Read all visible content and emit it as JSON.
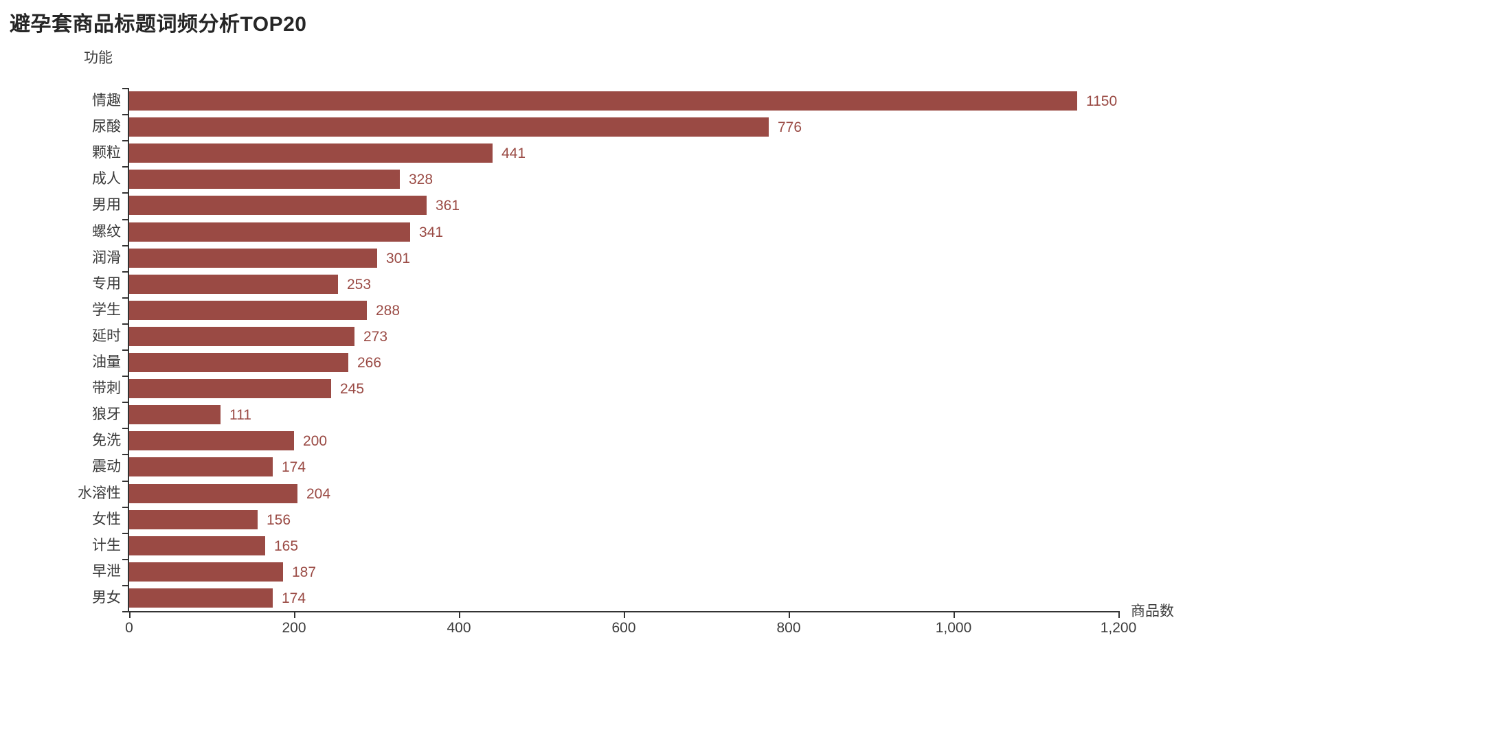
{
  "page": {
    "background": "#ffffff"
  },
  "header": {
    "title": "避孕套商品标题词频分析TOP20"
  },
  "chart_data": {
    "type": "bar",
    "orientation": "horizontal",
    "title": "避孕套商品标题词频分析TOP20",
    "y_axis_title": "功能",
    "x_axis_title": "商品数",
    "categories": [
      "情趣",
      "尿酸",
      "颗粒",
      "成人",
      "男用",
      "螺纹",
      "润滑",
      "专用",
      "学生",
      "延时",
      "油量",
      "带刺",
      "狼牙",
      "免洗",
      "震动",
      "水溶性",
      "女性",
      "计生",
      "早泄",
      "男女"
    ],
    "values": [
      1150,
      776,
      441,
      328,
      361,
      341,
      301,
      253,
      288,
      273,
      266,
      245,
      111,
      200,
      174,
      204,
      156,
      165,
      187,
      174
    ],
    "xlim": [
      0,
      1200
    ],
    "x_ticks": [
      0,
      200,
      400,
      600,
      800,
      1000,
      1200
    ],
    "x_tick_labels": [
      "0",
      "200",
      "400",
      "600",
      "800",
      "1,000",
      "1,200"
    ],
    "bar_color": "#9a4a44",
    "value_label_color": "#9a4a44",
    "axis_color": "#333333",
    "text_color": "#3c3c3c",
    "grid": false,
    "legend": "none",
    "value_label_position": "right-of-bar"
  }
}
